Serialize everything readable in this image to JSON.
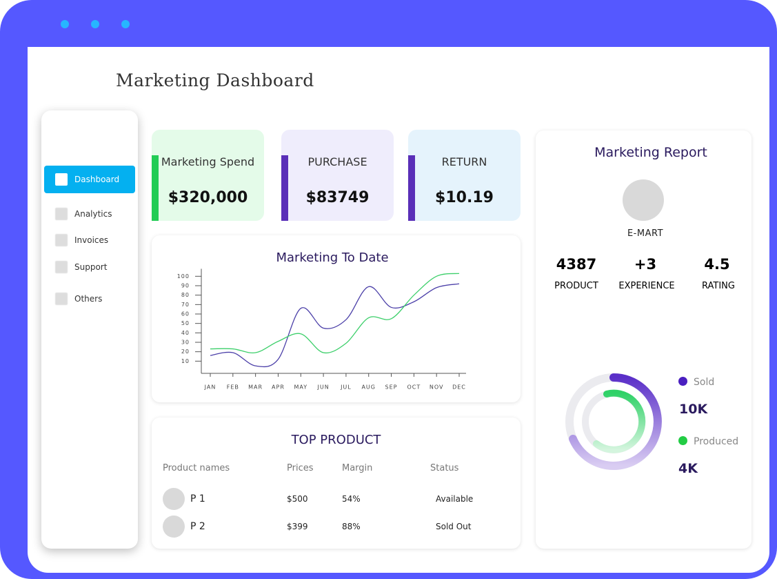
{
  "header": {
    "title": "Marketing Dashboard"
  },
  "sidebar": {
    "items": [
      "Dashboard",
      "Analytics",
      "Invoices",
      "Support",
      "Others"
    ]
  },
  "kpis": [
    {
      "label": "Marketing Spend",
      "value": "$320,000"
    },
    {
      "label": "PURCHASE",
      "value": "$83749"
    },
    {
      "label": "RETURN",
      "value": "$10.19"
    }
  ],
  "chart_data": {
    "type": "line",
    "title": "Marketing To Date",
    "categories": [
      "JAN",
      "FEB",
      "MAR",
      "APR",
      "MAY",
      "JUN",
      "JUL",
      "AUG",
      "SEP",
      "OCT",
      "NOV",
      "DEC"
    ],
    "series": [
      {
        "color": "#4b3fa8",
        "values": [
          16,
          19,
          5,
          12,
          66,
          45,
          54,
          89,
          67,
          73,
          88,
          92
        ]
      },
      {
        "color": "#3ccf6a",
        "values": [
          23,
          23,
          19,
          31,
          39,
          19,
          29,
          56,
          55,
          80,
          100,
          103
        ]
      }
    ],
    "ylim": [
      0,
      105
    ],
    "yticks": [
      10,
      20,
      30,
      40,
      50,
      60,
      70,
      80,
      90,
      100
    ]
  },
  "table": {
    "title": "TOP PRODUCT",
    "columns": [
      "Product names",
      "Prices",
      "Margin",
      "Status"
    ],
    "rows": [
      [
        "P 1",
        "$500",
        "54%",
        "Available"
      ],
      [
        "P 2",
        "$399",
        "88%",
        "Sold Out"
      ]
    ]
  },
  "report": {
    "title": "Marketing Report",
    "brand": "E-MART",
    "stats": [
      {
        "value": "4387",
        "label": "PRODUCT"
      },
      {
        "value": "+3",
        "label": "EXPERIENCE"
      },
      {
        "value": "4.5",
        "label": "RATING"
      }
    ],
    "legend": [
      {
        "name": "Sold",
        "value": "10K"
      },
      {
        "name": "Produced",
        "value": "4K"
      }
    ]
  }
}
